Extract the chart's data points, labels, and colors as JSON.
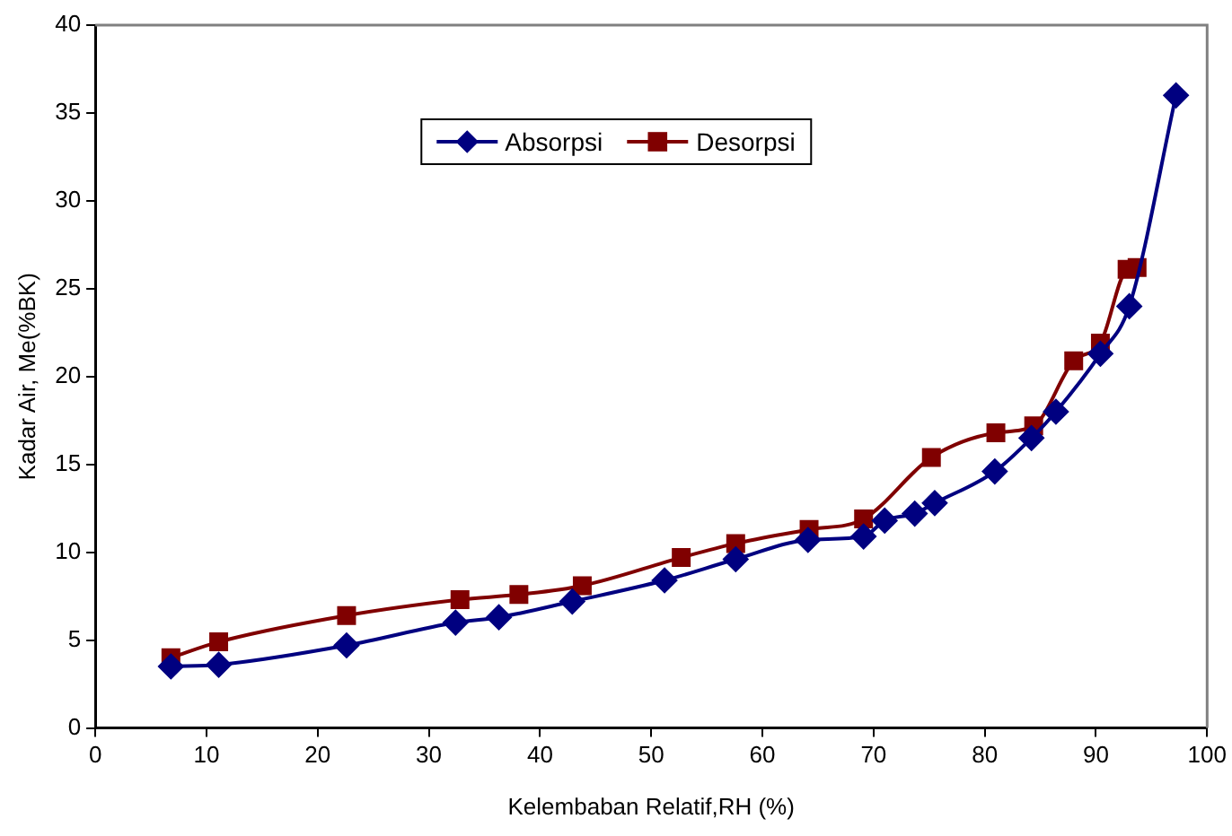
{
  "chart_data": {
    "type": "line",
    "xlabel": "Kelembaban Relatif,RH (%)",
    "ylabel": "Kadar Air, Me(%BK)",
    "xlim": [
      0,
      100
    ],
    "xticks": [
      0,
      10,
      20,
      30,
      40,
      50,
      60,
      70,
      80,
      90,
      100
    ],
    "ylim": [
      0,
      40
    ],
    "yticks": [
      0,
      5,
      10,
      15,
      20,
      25,
      30,
      35,
      40
    ],
    "grid": false,
    "legend": "top",
    "line_style": "solid",
    "series": [
      {
        "name": "Absorpsi",
        "color": "#000080",
        "marker": "diamond",
        "x": [
          6.8,
          11.1,
          22.6,
          32.4,
          36.3,
          42.9,
          51.2,
          57.6,
          64.1,
          69.1,
          71.0,
          73.7,
          75.5,
          80.9,
          84.2,
          86.4,
          90.4,
          93.0,
          97.2
        ],
        "values": [
          3.5,
          3.6,
          4.7,
          6.0,
          6.3,
          7.2,
          8.4,
          9.6,
          10.7,
          10.9,
          11.8,
          12.2,
          12.8,
          14.6,
          16.5,
          18.0,
          21.3,
          24.0,
          36.0
        ]
      },
      {
        "name": "Desorpsi",
        "color": "#800000",
        "marker": "square",
        "x": [
          6.8,
          11.1,
          22.6,
          32.8,
          38.1,
          43.8,
          52.7,
          57.6,
          64.2,
          69.1,
          75.2,
          81.0,
          84.4,
          88.0,
          90.4,
          92.8,
          93.7
        ],
        "values": [
          4.0,
          4.9,
          6.4,
          7.3,
          7.6,
          8.1,
          9.7,
          10.5,
          11.3,
          11.9,
          15.4,
          16.8,
          17.2,
          20.9,
          21.9,
          26.1,
          26.2
        ]
      }
    ]
  }
}
